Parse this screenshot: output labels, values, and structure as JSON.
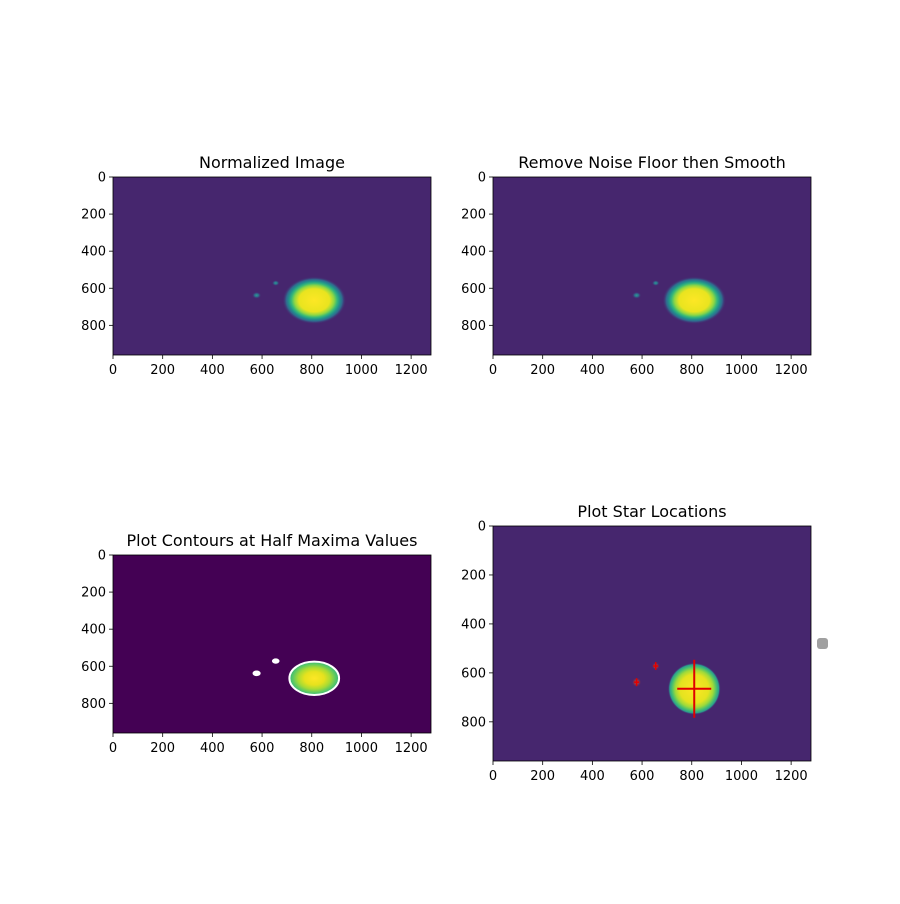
{
  "chart_data": [
    {
      "type": "heatmap",
      "title": "Normalized Image",
      "xlim": [
        0,
        1280
      ],
      "ylim": [
        960,
        0
      ],
      "xticks": [
        "0",
        "200",
        "400",
        "600",
        "800",
        "1000",
        "1200"
      ],
      "yticks": [
        "0",
        "200",
        "400",
        "600",
        "800"
      ],
      "colormap": "viridis",
      "sources": [
        {
          "x": 810,
          "y": 665,
          "radius": 95,
          "peak": 1.0
        },
        {
          "x": 578,
          "y": 638,
          "radius": 12,
          "peak": 0.35
        },
        {
          "x": 655,
          "y": 572,
          "radius": 10,
          "peak": 0.3
        }
      ]
    },
    {
      "type": "heatmap",
      "title": "Remove Noise Floor then Smooth",
      "xlim": [
        0,
        1280
      ],
      "ylim": [
        960,
        0
      ],
      "xticks": [
        "0",
        "200",
        "400",
        "600",
        "800",
        "1000",
        "1200"
      ],
      "yticks": [
        "0",
        "200",
        "400",
        "600",
        "800"
      ],
      "colormap": "viridis",
      "sources": [
        {
          "x": 810,
          "y": 665,
          "radius": 95,
          "peak": 1.0
        },
        {
          "x": 578,
          "y": 638,
          "radius": 12,
          "peak": 0.35
        },
        {
          "x": 655,
          "y": 572,
          "radius": 10,
          "peak": 0.3
        }
      ]
    },
    {
      "type": "heatmap",
      "title": "Plot Contours at Half Maxima Values",
      "xlim": [
        0,
        1280
      ],
      "ylim": [
        960,
        0
      ],
      "xticks": [
        "0",
        "200",
        "400",
        "600",
        "800",
        "1000",
        "1200"
      ],
      "yticks": [
        "0",
        "200",
        "400",
        "600",
        "800"
      ],
      "colormap": "viridis",
      "contours": [
        {
          "x": 810,
          "y": 665,
          "rx": 100,
          "ry": 90
        },
        {
          "x": 578,
          "y": 638,
          "rx": 14,
          "ry": 12
        },
        {
          "x": 655,
          "y": 572,
          "rx": 13,
          "ry": 11
        }
      ]
    },
    {
      "type": "heatmap",
      "title": "Plot Star Locations",
      "xlim": [
        0,
        1280
      ],
      "ylim": [
        960,
        0
      ],
      "xticks": [
        "0",
        "200",
        "400",
        "600",
        "800",
        "1000",
        "1200"
      ],
      "yticks": [
        "0",
        "200",
        "400",
        "600",
        "800"
      ],
      "colormap": "viridis",
      "sources": [
        {
          "x": 810,
          "y": 665,
          "radius": 95,
          "peak": 1.0
        },
        {
          "x": 578,
          "y": 638,
          "radius": 12,
          "peak": 0.35
        },
        {
          "x": 655,
          "y": 572,
          "radius": 10,
          "peak": 0.3
        }
      ],
      "star_locations": [
        {
          "x": 810,
          "y": 665,
          "size": "large"
        },
        {
          "x": 578,
          "y": 638,
          "size": "small"
        },
        {
          "x": 655,
          "y": 572,
          "size": "small"
        }
      ],
      "marker_color": "#e00000"
    }
  ],
  "colors": {
    "background": "#440154",
    "field": "#46266e",
    "yellow": "#fde725",
    "contour": "#ffffff"
  }
}
